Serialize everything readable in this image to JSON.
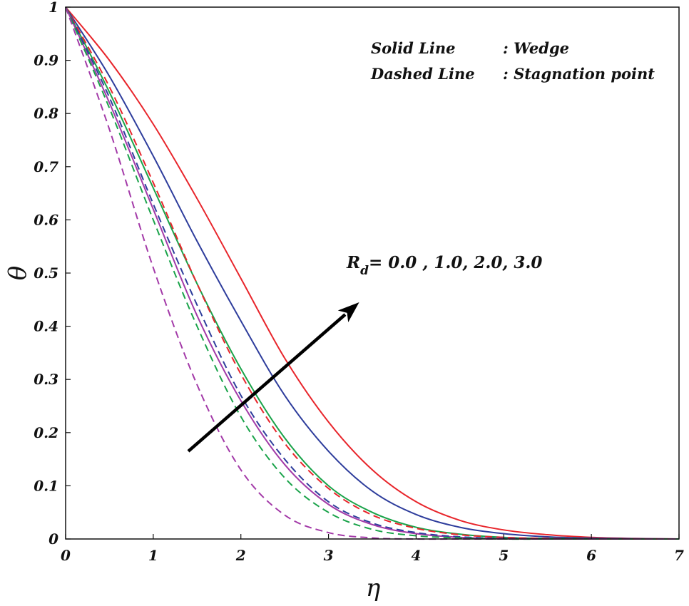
{
  "chart_data": {
    "type": "line",
    "xlabel": "η",
    "ylabel": "θ",
    "xlim": [
      0,
      7
    ],
    "ylim": [
      0,
      1
    ],
    "xticks": [
      "0",
      "1",
      "2",
      "3",
      "4",
      "5",
      "6",
      "7"
    ],
    "yticks": [
      "0",
      "0.1",
      "0.2",
      "0.3",
      "0.4",
      "0.5",
      "0.6",
      "0.7",
      "0.8",
      "0.9",
      "1"
    ],
    "grid": false,
    "legend": {
      "position": "top-right",
      "solid_label": "Solid Line",
      "solid_desc": ": Wedge",
      "dashed_label": "Dashed Line",
      "dashed_desc": ": Stagnation point"
    },
    "annotation": {
      "symbol": "R",
      "subscript": "d",
      "text": "= 0.0 , 1.0, 2.0, 3.0",
      "arrow_from": [
        1.4,
        0.165
      ],
      "arrow_to": [
        3.35,
        0.445
      ]
    },
    "colors": {
      "red": "#e8252b",
      "blue": "#2e3d9c",
      "green": "#1aa34a",
      "purple": "#a33aa8"
    },
    "x": [
      0,
      0.5,
      1,
      1.5,
      2,
      2.5,
      3,
      3.5,
      4,
      4.5,
      5,
      5.5,
      6,
      6.5,
      7
    ],
    "series": [
      {
        "name": "Wedge, Rd = 3.0",
        "style": "solid",
        "color": "#e8252b",
        "values": [
          1.0,
          0.9,
          0.78,
          0.64,
          0.49,
          0.34,
          0.22,
          0.13,
          0.07,
          0.035,
          0.017,
          0.008,
          0.003,
          0.001,
          0.0
        ]
      },
      {
        "name": "Wedge, Rd = 2.0",
        "style": "solid",
        "color": "#2e3d9c",
        "values": [
          1.0,
          0.87,
          0.72,
          0.56,
          0.41,
          0.27,
          0.165,
          0.09,
          0.046,
          0.022,
          0.01,
          0.004,
          0.0015,
          0.0005,
          0.0
        ]
      },
      {
        "name": "Wedge, Rd = 1.0",
        "style": "solid",
        "color": "#1aa34a",
        "values": [
          1.0,
          0.84,
          0.66,
          0.48,
          0.32,
          0.19,
          0.1,
          0.05,
          0.022,
          0.009,
          0.003,
          0.001,
          0.0,
          0.0,
          0.0
        ]
      },
      {
        "name": "Wedge, Rd = 0.0",
        "style": "solid",
        "color": "#a33aa8",
        "values": [
          1.0,
          0.82,
          0.62,
          0.42,
          0.26,
          0.14,
          0.065,
          0.027,
          0.01,
          0.003,
          0.001,
          0.0,
          0.0,
          0.0,
          0.0
        ]
      },
      {
        "name": "Stagnation point, Rd = 3.0",
        "style": "dashed",
        "color": "#e8252b",
        "values": [
          1.0,
          0.85,
          0.67,
          0.48,
          0.31,
          0.18,
          0.095,
          0.045,
          0.02,
          0.008,
          0.003,
          0.001,
          0.0,
          0.0,
          0.0
        ]
      },
      {
        "name": "Stagnation point, Rd = 2.0",
        "style": "dashed",
        "color": "#2e3d9c",
        "values": [
          1.0,
          0.83,
          0.63,
          0.44,
          0.27,
          0.15,
          0.07,
          0.03,
          0.012,
          0.004,
          0.001,
          0.0,
          0.0,
          0.0,
          0.0
        ]
      },
      {
        "name": "Stagnation point, Rd = 1.0",
        "style": "dashed",
        "color": "#1aa34a",
        "values": [
          1.0,
          0.81,
          0.6,
          0.4,
          0.23,
          0.115,
          0.05,
          0.018,
          0.006,
          0.002,
          0.0,
          0.0,
          0.0,
          0.0,
          0.0
        ]
      },
      {
        "name": "Stagnation point, Rd = 0.0",
        "style": "dashed",
        "color": "#a33aa8",
        "values": [
          1.0,
          0.77,
          0.51,
          0.29,
          0.13,
          0.045,
          0.012,
          0.002,
          0.0,
          0.0,
          0.0,
          0.0,
          0.0,
          0.0,
          0.0
        ]
      }
    ]
  }
}
